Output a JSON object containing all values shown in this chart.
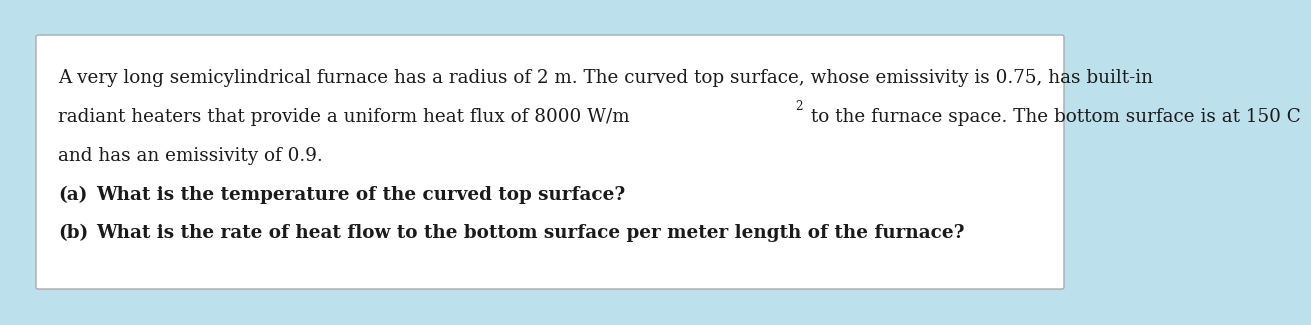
{
  "background_color": "#bde0ed",
  "box_color": "#ffffff",
  "box_edge_color": "#aaaaaa",
  "text_color": "#1a1a1a",
  "line1": "A very long semicylindrical furnace has a radius of 2 m. The curved top surface, whose emissivity is 0.75, has built-in",
  "line2_pre": "radiant heaters that provide a uniform heat flux of 8000 W/m",
  "line2_super": "2",
  "line2_post": " to the furnace space. The bottom surface is at 150 C",
  "line3": "and has an emissivity of 0.9.",
  "line4_label": "(a)",
  "line4_text": "What is the temperature of the curved top surface?",
  "line5_label": "(b)",
  "line5_text": "What is the rate of heat flow to the bottom surface per meter length of the furnace?",
  "font_size": 13.2,
  "font_family": "DejaVu Serif"
}
